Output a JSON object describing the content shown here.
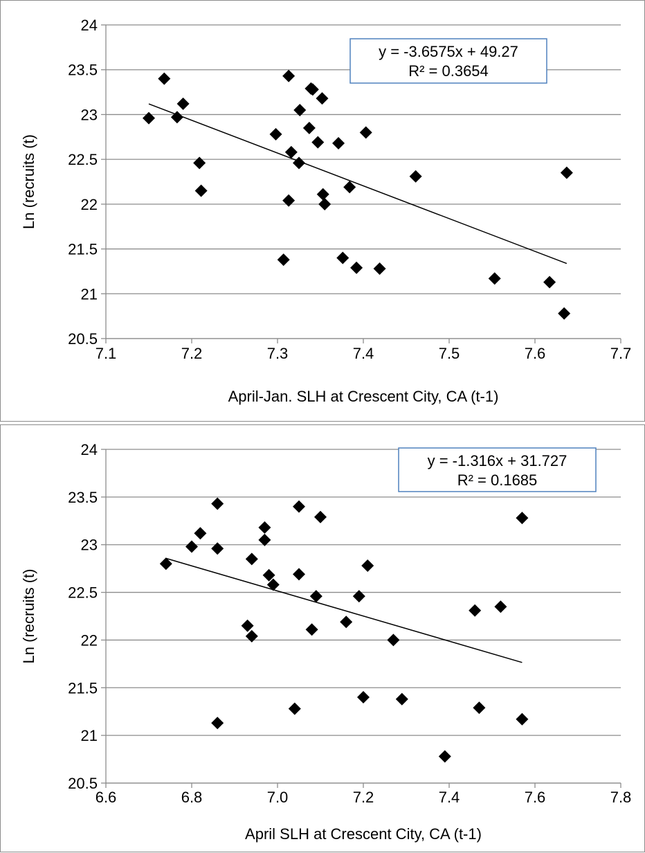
{
  "chart_data": [
    {
      "type": "scatter",
      "xlabel": "April-Jan. SLH at Crescent City, CA (t-1)",
      "ylabel": "Ln (recruits (t)",
      "xlim": [
        7.1,
        7.7
      ],
      "ylim": [
        20.5,
        24
      ],
      "xticks": [
        "7.1",
        "7.2",
        "7.3",
        "7.4",
        "7.5",
        "7.6",
        "7.7"
      ],
      "yticks": [
        "20.5",
        "21",
        "21.5",
        "22",
        "22.5",
        "23",
        "23.5",
        "24"
      ],
      "grid": "horizontal",
      "points": [
        [
          7.15,
          22.96
        ],
        [
          7.168,
          23.4
        ],
        [
          7.183,
          22.97
        ],
        [
          7.19,
          23.12
        ],
        [
          7.209,
          22.46
        ],
        [
          7.211,
          22.15
        ],
        [
          7.298,
          22.78
        ],
        [
          7.307,
          21.38
        ],
        [
          7.313,
          22.04
        ],
        [
          7.313,
          23.43
        ],
        [
          7.316,
          22.58
        ],
        [
          7.325,
          22.46
        ],
        [
          7.326,
          23.05
        ],
        [
          7.337,
          22.85
        ],
        [
          7.339,
          23.29
        ],
        [
          7.341,
          23.28
        ],
        [
          7.347,
          22.69
        ],
        [
          7.352,
          23.18
        ],
        [
          7.353,
          22.11
        ],
        [
          7.355,
          22.0
        ],
        [
          7.371,
          22.68
        ],
        [
          7.376,
          21.4
        ],
        [
          7.384,
          22.19
        ],
        [
          7.392,
          21.29
        ],
        [
          7.403,
          22.8
        ],
        [
          7.419,
          21.28
        ],
        [
          7.461,
          22.31
        ],
        [
          7.553,
          21.17
        ],
        [
          7.617,
          21.13
        ],
        [
          7.634,
          20.78
        ],
        [
          7.637,
          22.35
        ]
      ],
      "trendline": {
        "slope": -3.6575,
        "intercept": 49.27,
        "x_range": [
          7.15,
          7.637
        ],
        "equation": "y = -3.6575x + 49.27",
        "r2": "R² = 0.3654"
      },
      "marker": "diamond",
      "marker_color": "#000000"
    },
    {
      "type": "scatter",
      "xlabel": "April SLH at Crescent City, CA (t-1)",
      "ylabel": "Ln (recruits (t)",
      "xlim": [
        6.6,
        7.8
      ],
      "ylim": [
        20.5,
        24
      ],
      "xticks": [
        "6.6",
        "6.8",
        "7.0",
        "7.2",
        "7.4",
        "7.6",
        "7.8"
      ],
      "yticks": [
        "20.5",
        "21",
        "21.5",
        "22",
        "22.5",
        "23",
        "23.5",
        "24"
      ],
      "grid": "horizontal",
      "points": [
        [
          6.74,
          22.8
        ],
        [
          6.8,
          22.98
        ],
        [
          6.82,
          23.12
        ],
        [
          6.86,
          23.43
        ],
        [
          6.86,
          22.96
        ],
        [
          6.86,
          21.13
        ],
        [
          6.93,
          22.15
        ],
        [
          6.94,
          22.04
        ],
        [
          6.94,
          22.85
        ],
        [
          6.97,
          23.18
        ],
        [
          6.97,
          23.05
        ],
        [
          6.98,
          22.68
        ],
        [
          6.99,
          22.58
        ],
        [
          7.04,
          21.28
        ],
        [
          7.05,
          23.4
        ],
        [
          7.05,
          22.69
        ],
        [
          7.08,
          22.11
        ],
        [
          7.09,
          22.46
        ],
        [
          7.1,
          23.29
        ],
        [
          7.16,
          22.19
        ],
        [
          7.19,
          22.46
        ],
        [
          7.2,
          21.4
        ],
        [
          7.21,
          22.78
        ],
        [
          7.27,
          22.0
        ],
        [
          7.29,
          21.38
        ],
        [
          7.39,
          20.78
        ],
        [
          7.46,
          22.31
        ],
        [
          7.47,
          21.29
        ],
        [
          7.52,
          22.35
        ],
        [
          7.57,
          23.28
        ],
        [
          7.57,
          21.17
        ]
      ],
      "trendline": {
        "slope": -1.316,
        "intercept": 31.727,
        "x_range": [
          6.74,
          7.57
        ],
        "equation": "y = -1.316x + 31.727",
        "r2": "R² = 0.1685"
      },
      "marker": "diamond",
      "marker_color": "#000000"
    }
  ],
  "colors": {
    "gridline": "#8c8c8c",
    "axis": "#8c8c8c",
    "equation_box_border": "#4f81bd",
    "panel_border": "#8c8c8c"
  }
}
